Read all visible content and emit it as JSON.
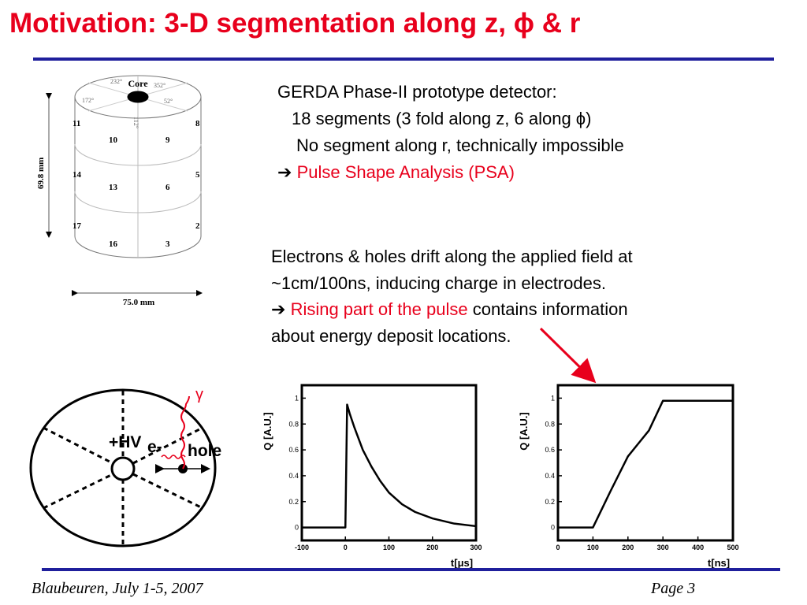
{
  "slide": {
    "title": "Motivation: 3-D segmentation along z, ϕ & r",
    "footer_left": "Blaubeuren, July 1-5, 2007",
    "footer_right": "Page 3"
  },
  "detector_drawing": {
    "core_label": "Core",
    "angles": [
      "232°",
      "352°",
      "172°",
      "52°",
      "112°"
    ],
    "segments_left": [
      "11",
      "14",
      "17"
    ],
    "segments_right": [
      "8",
      "5",
      "2"
    ],
    "segments_front": [
      [
        "10",
        "9"
      ],
      [
        "13",
        "6"
      ],
      [
        "16",
        "3"
      ]
    ],
    "height_label": "69.8 mm",
    "width_label": "75.0 mm"
  },
  "gerda_text": {
    "line1": "GERDA Phase-II prototype detector:",
    "line2": "18 segments (3 fold along z, 6 along ϕ)",
    "line3": "No segment along r,  technically impossible",
    "arrow": "➔",
    "line4": "Pulse Shape Analysis (PSA)"
  },
  "drift_text": {
    "line1": "Electrons & holes drift along the applied field at",
    "line2": "~1cm/100ns, inducing charge in electrodes.",
    "arrow": "➔",
    "line3_red": "Rising part of the pulse",
    "line3_rest": " contains information",
    "line4": "about energy deposit locations."
  },
  "cross_section": {
    "hv_label": "+HV",
    "electron_label": "e-",
    "hole_label": "hole",
    "gamma_label": "γ"
  },
  "chart_data": [
    {
      "type": "line",
      "title": "",
      "xlabel": "t[μs]",
      "ylabel": "Q [A.U.]",
      "xlim": [
        -100,
        300
      ],
      "ylim": [
        -0.1,
        1.1
      ],
      "xticks": [
        "-100",
        "0",
        "100",
        "200",
        "300"
      ],
      "yticks": [
        "0",
        "0.2",
        "0.4",
        "0.6",
        "0.8",
        "1"
      ],
      "series": [
        {
          "x": [
            -100,
            0,
            4,
            10,
            20,
            40,
            60,
            80,
            100,
            130,
            160,
            200,
            250,
            300
          ],
          "values": [
            0,
            0,
            0.95,
            0.88,
            0.78,
            0.6,
            0.47,
            0.36,
            0.27,
            0.18,
            0.12,
            0.07,
            0.03,
            0.01
          ]
        }
      ]
    },
    {
      "type": "line",
      "title": "",
      "xlabel": "t[ns]",
      "ylabel": "Q [A.U.]",
      "xlim": [
        0,
        500
      ],
      "ylim": [
        -0.1,
        1.1
      ],
      "xticks": [
        "0",
        "100",
        "200",
        "300",
        "400",
        "500"
      ],
      "yticks": [
        "0",
        "0.2",
        "0.4",
        "0.6",
        "0.8",
        "1"
      ],
      "series": [
        {
          "x": [
            0,
            100,
            150,
            200,
            230,
            260,
            300,
            350,
            400,
            500
          ],
          "values": [
            0,
            0,
            0.28,
            0.55,
            0.65,
            0.75,
            0.98,
            0.98,
            0.98,
            0.98
          ]
        }
      ]
    }
  ]
}
